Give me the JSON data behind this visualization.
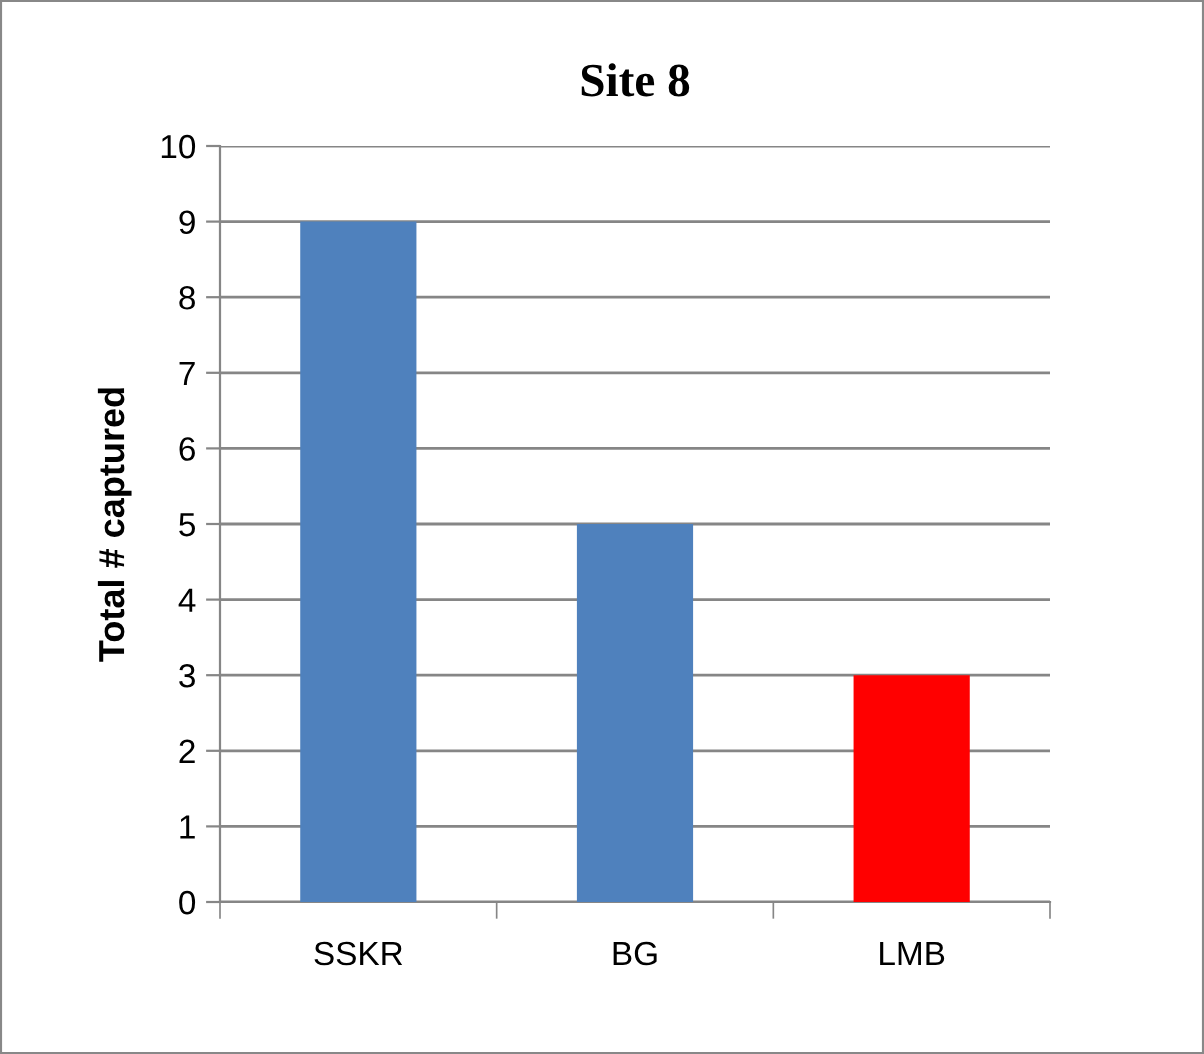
{
  "chart_data": {
    "type": "bar",
    "title": "Site 8",
    "ylabel": "Total # captured",
    "categories": [
      "SSKR",
      "BG",
      "LMB"
    ],
    "values": [
      9,
      5,
      3
    ],
    "colors": [
      "#4f81bd",
      "#4f81bd",
      "#ff0000"
    ],
    "ylim": [
      0,
      10
    ],
    "yticks": [
      0,
      1,
      2,
      3,
      4,
      5,
      6,
      7,
      8,
      9,
      10
    ],
    "grid": "y"
  }
}
